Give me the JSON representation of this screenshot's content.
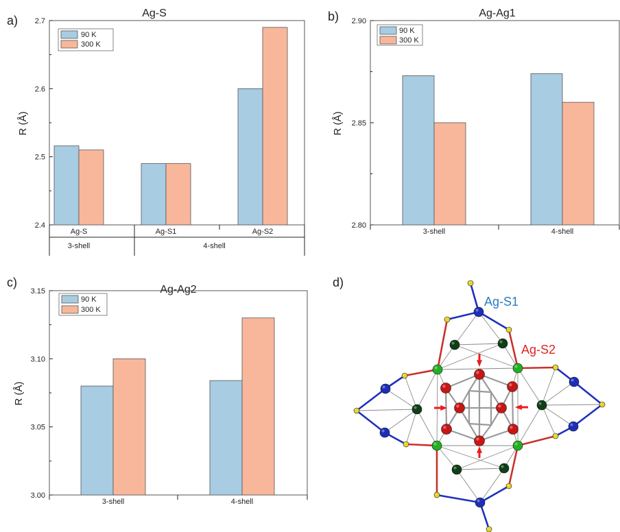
{
  "colors": {
    "series_90K": "#a8cce2",
    "series_300K": "#f8b79b",
    "axis": "#222222",
    "frame": "#555555",
    "bond_blue": "#1f2fbf",
    "bond_red": "#c8312c",
    "label_blue": "#2a7bc0",
    "label_red": "#e02424",
    "arrow": "#ee1c1c",
    "atom_blue": "#1d2fb8",
    "atom_green": "#22b022",
    "atom_darkgreen": "#0f3f16",
    "atom_red": "#c81616",
    "atom_yellow": "#e5d52a"
  },
  "chart_data": [
    {
      "panel_label": "a)",
      "type": "bar",
      "title": "Ag-S",
      "ylabel": "R (Å)",
      "xlabel": "",
      "ylim": [
        2.4,
        2.7
      ],
      "yticks": [
        "2.4",
        "2.5",
        "2.6",
        "2.7"
      ],
      "categories": [
        "Ag-S",
        "Ag-S1",
        "Ag-S2"
      ],
      "groups": [
        {
          "label": "3-shell",
          "span": [
            0,
            0
          ]
        },
        {
          "label": "4-shell",
          "span": [
            1,
            2
          ]
        }
      ],
      "legend_position": "top-left",
      "grid": false,
      "series": [
        {
          "name": "90 K",
          "values": [
            2.516,
            2.49,
            2.6
          ]
        },
        {
          "name": "300 K",
          "values": [
            2.51,
            2.49,
            2.69
          ]
        }
      ]
    },
    {
      "panel_label": "b)",
      "type": "bar",
      "title": "Ag-Ag1",
      "ylabel": "R (Å)",
      "xlabel": "",
      "ylim": [
        2.8,
        2.9
      ],
      "yticks": [
        "2.80",
        "2.85",
        "2.90"
      ],
      "categories": [
        "3-shell",
        "4-shell"
      ],
      "legend_position": "top-left",
      "grid": false,
      "series": [
        {
          "name": "90 K",
          "values": [
            2.873,
            2.874
          ]
        },
        {
          "name": "300 K",
          "values": [
            2.85,
            2.86
          ]
        }
      ]
    },
    {
      "panel_label": "c)",
      "type": "bar",
      "title": "Ag-Ag2",
      "ylabel": "R (Å)",
      "xlabel": "",
      "ylim": [
        3.0,
        3.15
      ],
      "yticks": [
        "3.00",
        "3.05",
        "3.10",
        "3.15"
      ],
      "categories": [
        "3-shell",
        "4-shell"
      ],
      "legend_position": "top-left",
      "grid": false,
      "series": [
        {
          "name": "90 K",
          "values": [
            3.08,
            3.084
          ]
        },
        {
          "name": "300 K",
          "values": [
            3.1,
            3.13
          ]
        }
      ]
    }
  ],
  "diagram": {
    "panel_label": "d)",
    "labels": {
      "ag_s1": "Ag-S1",
      "ag_s2": "Ag-S2"
    }
  }
}
